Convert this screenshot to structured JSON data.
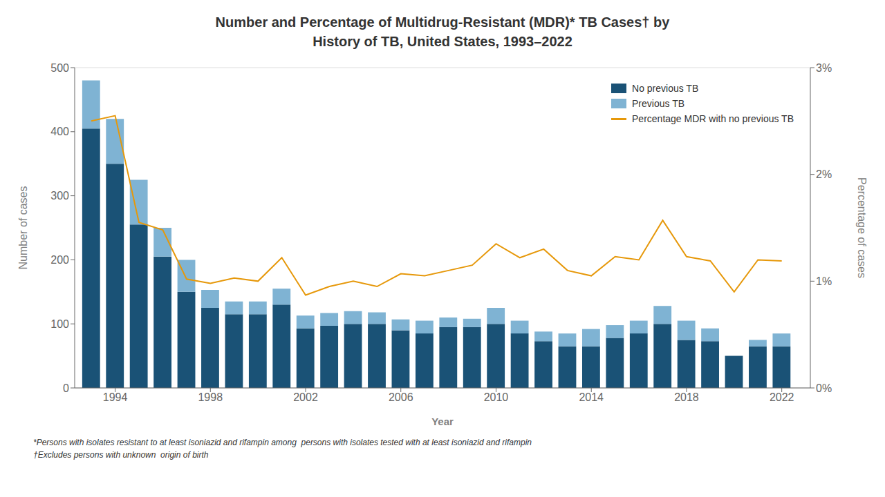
{
  "chart_data": {
    "type": "bar",
    "title": "Number and Percentage of Multidrug-Resistant (MDR)* TB Cases† by\nHistory of TB, United States, 1993–2022",
    "x_label": "Year",
    "y_label": "Number of cases",
    "y2_label": "Percentage of cases",
    "x": [
      1993,
      1994,
      1995,
      1996,
      1997,
      1998,
      1999,
      2000,
      2001,
      2002,
      2003,
      2004,
      2005,
      2006,
      2007,
      2008,
      2009,
      2010,
      2011,
      2012,
      2013,
      2014,
      2015,
      2016,
      2017,
      2018,
      2019,
      2020,
      2021,
      2022
    ],
    "series": [
      {
        "name": "No previous TB",
        "color": "#1a5276",
        "values": [
          405,
          350,
          255,
          205,
          150,
          125,
          115,
          115,
          130,
          93,
          97,
          100,
          100,
          90,
          85,
          95,
          95,
          100,
          85,
          73,
          65,
          65,
          78,
          85,
          100,
          75,
          73,
          50,
          65,
          65
        ]
      },
      {
        "name": "Previous TB",
        "color": "#7fb3d3",
        "values": [
          75,
          70,
          70,
          45,
          50,
          28,
          20,
          20,
          25,
          20,
          20,
          20,
          18,
          17,
          20,
          15,
          13,
          25,
          20,
          15,
          20,
          27,
          20,
          20,
          28,
          30,
          20,
          0,
          10,
          20
        ]
      },
      {
        "name": "Percentage MDR with no previous TB",
        "type": "line",
        "axis": "y2",
        "color": "#e6980a",
        "values": [
          2.5,
          2.55,
          1.55,
          1.48,
          1.02,
          0.98,
          1.03,
          1.0,
          1.22,
          0.87,
          0.95,
          1.0,
          0.95,
          1.07,
          1.05,
          1.1,
          1.15,
          1.35,
          1.22,
          1.3,
          1.1,
          1.05,
          1.23,
          1.2,
          1.57,
          1.23,
          1.19,
          0.9,
          1.2,
          1.19
        ]
      }
    ],
    "xlim": [
      1992.3,
      2023.2
    ],
    "xticks": [
      1994,
      1998,
      2002,
      2006,
      2010,
      2014,
      2018,
      2022
    ],
    "ylim": [
      0,
      500
    ],
    "yticks": [
      0,
      100,
      200,
      300,
      400,
      500
    ],
    "y2lim": [
      0,
      3
    ],
    "y2ticks": [
      {
        "value": 0,
        "label": "0%"
      },
      {
        "value": 1,
        "label": "1%"
      },
      {
        "value": 2,
        "label": "2%"
      },
      {
        "value": 3,
        "label": "3%"
      }
    ],
    "stacked": true,
    "grid": true,
    "legend": "upper right",
    "annotations": [
      "*Persons with isolates resistant to at least isoniazid and rifampin among  persons with isolates tested with at least isoniazid and rifampin",
      "†Excludes persons with unknown  origin of birth"
    ]
  }
}
